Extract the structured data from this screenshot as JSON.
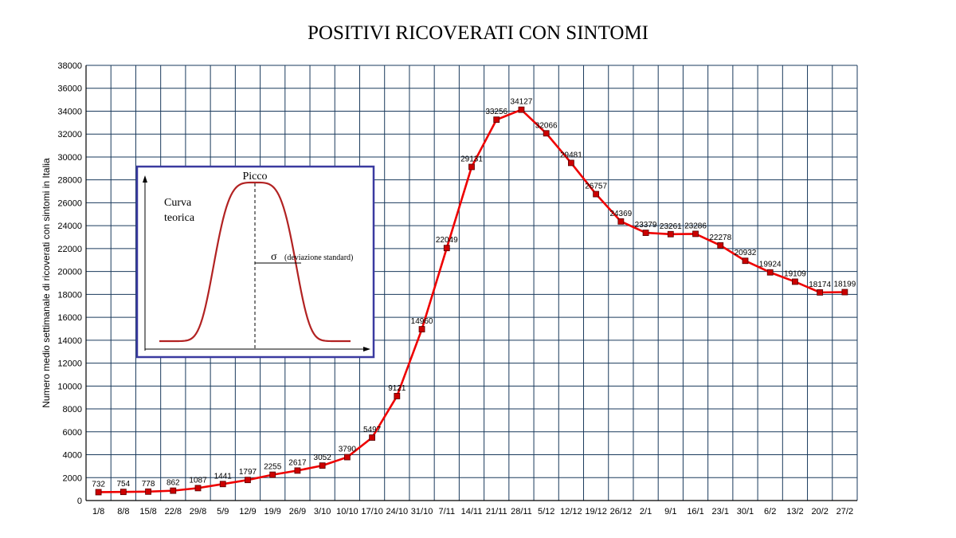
{
  "chart_data": {
    "type": "line",
    "title": "POSITIVI RICOVERATI CON SINTOMI",
    "ylabel": "Numero medio settimanale di ricoverati con sintomi in Italia",
    "xlabel": "",
    "ylim": [
      0,
      38000
    ],
    "ytick_step": 2000,
    "grid": true,
    "categories": [
      "1/8",
      "8/8",
      "15/8",
      "22/8",
      "29/8",
      "5/9",
      "12/9",
      "19/9",
      "26/9",
      "3/10",
      "10/10",
      "17/10",
      "24/10",
      "31/10",
      "7/11",
      "14/11",
      "21/11",
      "28/11",
      "5/12",
      "12/12",
      "19/12",
      "26/12",
      "2/1",
      "9/1",
      "16/1",
      "23/1",
      "30/1",
      "6/2",
      "13/2",
      "20/2",
      "27/2"
    ],
    "series": [
      {
        "values": [
          732,
          754,
          778,
          862,
          1087,
          1441,
          1797,
          2255,
          2617,
          3052,
          3790,
          5497,
          9121,
          14960,
          22049,
          29131,
          33256,
          34127,
          32066,
          29481,
          26757,
          24369,
          23379,
          23261,
          23286,
          22278,
          20932,
          19924,
          19109,
          18174,
          18199
        ],
        "color": "#ee0000",
        "marker_color": "#cc0000"
      }
    ]
  },
  "inset": {
    "picco_label": "Picco",
    "curve_label_line1": "Curva",
    "curve_label_line2": "teorica",
    "sigma_symbol": "σ",
    "sigma_text": "(deviazione standard)",
    "curve_color": "#b22222",
    "border_color": "#3a3aa0"
  },
  "colors": {
    "grid": "#1a3a5c",
    "axis": "#000000"
  }
}
